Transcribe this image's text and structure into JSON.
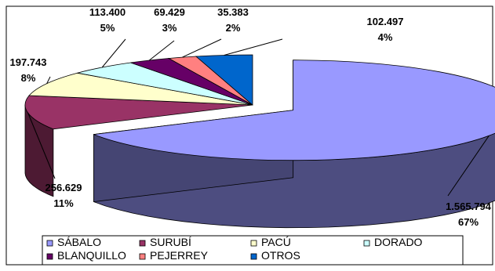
{
  "chart_data": {
    "type": "pie",
    "style": "3d-exploded",
    "legend_position": "bottom",
    "slices": [
      {
        "name": "SÁBALO",
        "value": "1.565.794",
        "percent": "67%",
        "pct": 67,
        "color": "#9999ff"
      },
      {
        "name": "SURUBÍ",
        "value": "256.629",
        "percent": "11%",
        "pct": 11,
        "color": "#993366"
      },
      {
        "name": "PACÚ",
        "value": "197.743",
        "percent": "8%",
        "pct": 8,
        "color": "#ffffcc"
      },
      {
        "name": "DORADO",
        "value": "113.400",
        "percent": "5%",
        "pct": 5,
        "color": "#ccffff"
      },
      {
        "name": "BLANQUILLO",
        "value": "69.429",
        "percent": "3%",
        "pct": 3,
        "color": "#660066"
      },
      {
        "name": "PEJERREY",
        "value": "35.383",
        "percent": "2%",
        "pct": 2,
        "color": "#ff8080"
      },
      {
        "name": "OTROS",
        "value": "102.497",
        "percent": "4%",
        "pct": 4,
        "color": "#0066cc"
      }
    ]
  }
}
